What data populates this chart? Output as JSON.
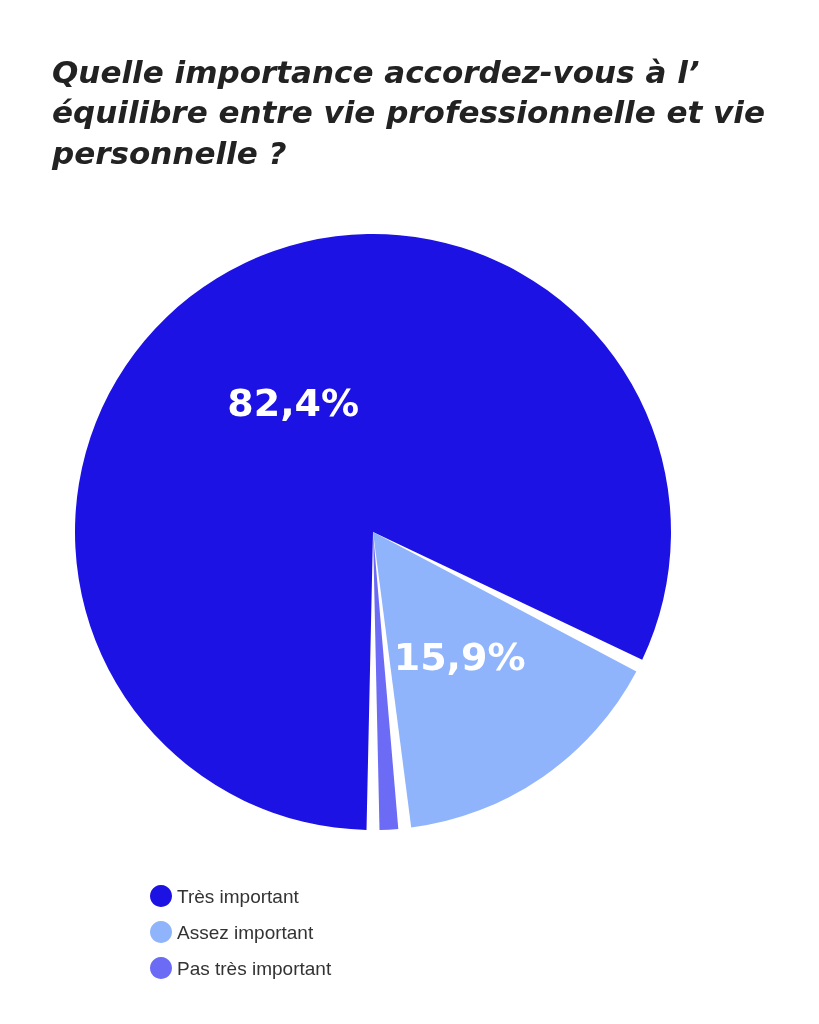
{
  "chart_data": {
    "type": "pie",
    "title": "Quelle importance accordez-vous à l’ équilibre entre vie professionnelle et vie personnelle ?",
    "categories": [
      "Très important",
      "Assez important",
      "Pas très important"
    ],
    "values": [
      82.4,
      15.9,
      1.7
    ],
    "colors": [
      "#1c12e4",
      "#8fb4fc",
      "#6b6bf5"
    ],
    "value_labels": [
      "82,4%",
      "15,9%",
      null
    ],
    "legend": "bottom left"
  }
}
